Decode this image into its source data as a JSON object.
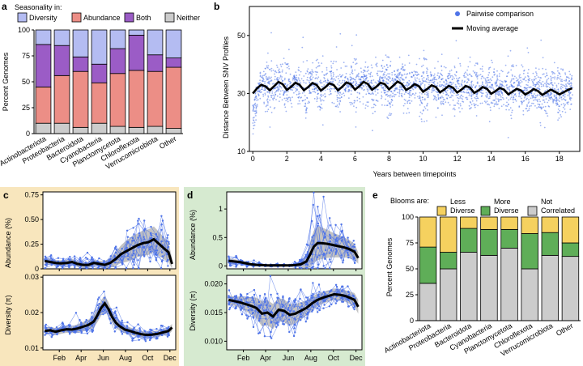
{
  "colors": {
    "diversity": "#b4bcf2",
    "abundance": "#ec8e86",
    "both": "#9b5cc6",
    "neither": "#cccccc",
    "scatter": "#4f74e8",
    "line": "#000000",
    "less_diverse": "#f5d15f",
    "more_diverse": "#5fae58",
    "not_correlated": "#cccccc",
    "panel_c_bg": "#f8e6bd",
    "panel_d_bg": "#d6ead0",
    "band": "#b8b8b8"
  },
  "panels": {
    "a": "a",
    "b": "b",
    "c": "c",
    "d": "d",
    "e": "e"
  },
  "chart_data": [
    {
      "panel": "a",
      "type": "bar",
      "stacked": true,
      "legend_title": "Seasonality in:",
      "ylabel": "Percent Genomes",
      "ylim": [
        0,
        100
      ],
      "yticks": [
        0,
        25,
        50,
        75,
        100
      ],
      "categories": [
        "Actinobacteriota",
        "Proteobacteria",
        "Bacteroidota",
        "Cyanobacteria",
        "Planctomycetota",
        "Chloroflexota",
        "Verrucomicrobiota",
        "Other"
      ],
      "series": [
        {
          "name": "Neither",
          "color_key": "neither",
          "values": [
            10,
            10,
            6,
            10,
            7,
            6,
            7,
            5
          ]
        },
        {
          "name": "Abundance",
          "color_key": "abundance",
          "values": [
            35,
            46,
            54,
            39,
            51,
            55,
            53,
            59
          ]
        },
        {
          "name": "Both",
          "color_key": "both",
          "values": [
            41,
            29,
            14,
            18,
            24,
            34,
            16,
            9
          ]
        },
        {
          "name": "Diversity",
          "color_key": "diversity",
          "values": [
            14,
            15,
            26,
            33,
            18,
            5,
            24,
            27
          ]
        }
      ],
      "legend_order": [
        "Diversity",
        "Abundance",
        "Both",
        "Neither"
      ]
    },
    {
      "panel": "b",
      "type": "scatter",
      "xlabel": "Years between timepoints",
      "ylabel": "Distance Between SNV Profiles",
      "xlim": [
        -0.2,
        19.2
      ],
      "ylim": [
        10,
        60
      ],
      "xticks": [
        0,
        2,
        4,
        6,
        8,
        10,
        12,
        14,
        16,
        18
      ],
      "yticks": [
        10,
        30,
        50
      ],
      "legend": [
        "Pairwise comparison",
        "Moving average"
      ],
      "moving_average": {
        "x": [
          0,
          0.25,
          0.5,
          0.75,
          1,
          1.25,
          1.5,
          1.75,
          2,
          2.25,
          2.5,
          2.75,
          3,
          3.25,
          3.5,
          3.75,
          4,
          4.25,
          4.5,
          4.75,
          5,
          5.25,
          5.5,
          5.75,
          6,
          6.25,
          6.5,
          6.75,
          7,
          7.25,
          7.5,
          7.75,
          8,
          8.25,
          8.5,
          8.75,
          9,
          9.25,
          9.5,
          9.75,
          10,
          10.25,
          10.5,
          10.75,
          11,
          11.25,
          11.5,
          11.75,
          12,
          12.25,
          12.5,
          12.75,
          13,
          13.25,
          13.5,
          13.75,
          14,
          14.25,
          14.5,
          14.75,
          15,
          15.25,
          15.5,
          15.75,
          16,
          16.25,
          16.5,
          16.75,
          17,
          17.25,
          17.5,
          17.75,
          18,
          18.25,
          18.5,
          18.75
        ],
        "y": [
          30.0,
          31.8,
          33.0,
          32.4,
          31.1,
          32.5,
          34.0,
          33.2,
          31.2,
          32.3,
          33.7,
          33.0,
          31.1,
          32.2,
          33.6,
          32.9,
          31.0,
          32.1,
          33.5,
          32.9,
          31.1,
          32.3,
          33.8,
          33.2,
          31.3,
          32.5,
          34.0,
          33.3,
          31.3,
          32.3,
          33.7,
          33.2,
          31.4,
          32.7,
          34.1,
          33.3,
          31.2,
          32.0,
          33.2,
          32.5,
          30.6,
          31.6,
          32.8,
          32.2,
          30.4,
          31.4,
          32.6,
          32.0,
          30.3,
          31.3,
          32.6,
          32.0,
          30.2,
          31.0,
          32.2,
          31.6,
          29.9,
          30.8,
          31.9,
          31.3,
          29.7,
          30.6,
          31.6,
          31.0,
          29.6,
          30.5,
          31.5,
          30.8,
          29.5,
          30.4,
          31.3,
          30.6,
          29.7,
          30.4,
          31.2,
          31.8
        ]
      },
      "scatter_note": "dense pairwise comparisons, mean follows moving average with annual oscillation"
    },
    {
      "panel": "c",
      "type": "line",
      "months": [
        "Feb",
        "Apr",
        "Jun",
        "Aug",
        "Oct",
        "Dec"
      ],
      "subplots": [
        {
          "ylabel": "Abundance (%)",
          "ylim": [
            0,
            0.78
          ],
          "yticks": [
            0,
            0.25,
            0.5,
            0.75
          ],
          "ytick_labels": [
            "0",
            "0.25",
            "0.50",
            "0.75"
          ],
          "x_day": [
            5,
            20,
            35,
            50,
            65,
            80,
            95,
            110,
            125,
            140,
            155,
            170,
            185,
            200,
            215,
            230,
            245,
            260,
            275,
            290,
            305,
            320,
            335,
            345,
            355
          ],
          "mean": [
            0.08,
            0.07,
            0.06,
            0.055,
            0.06,
            0.07,
            0.05,
            0.04,
            0.04,
            0.06,
            0.05,
            0.04,
            0.06,
            0.1,
            0.15,
            0.18,
            0.21,
            0.24,
            0.26,
            0.27,
            0.3,
            0.25,
            0.2,
            0.17,
            0.05
          ],
          "band": [
            0.03,
            0.03,
            0.03,
            0.03,
            0.03,
            0.03,
            0.03,
            0.03,
            0.03,
            0.03,
            0.03,
            0.04,
            0.05,
            0.07,
            0.09,
            0.11,
            0.12,
            0.12,
            0.13,
            0.13,
            0.13,
            0.12,
            0.11,
            0.1,
            0.06
          ]
        },
        {
          "ylabel": "Diversity (π)",
          "ylim": [
            0.0095,
            0.0305
          ],
          "yticks": [
            0.01,
            0.02,
            0.03
          ],
          "ytick_labels": [
            "0.01",
            "0.02",
            "0.03"
          ],
          "x_day": [
            5,
            20,
            35,
            50,
            65,
            80,
            95,
            110,
            125,
            140,
            150,
            160,
            170,
            180,
            190,
            200,
            210,
            225,
            240,
            255,
            270,
            285,
            300,
            315,
            330,
            345,
            355
          ],
          "mean": [
            0.0148,
            0.015,
            0.0146,
            0.015,
            0.0153,
            0.0152,
            0.0155,
            0.016,
            0.0165,
            0.0175,
            0.0193,
            0.0213,
            0.0226,
            0.021,
            0.0188,
            0.0172,
            0.0162,
            0.0152,
            0.0148,
            0.0143,
            0.0139,
            0.0137,
            0.0138,
            0.014,
            0.0144,
            0.0148,
            0.0158
          ],
          "band": [
            0.001,
            0.001,
            0.001,
            0.001,
            0.001,
            0.001,
            0.0012,
            0.0013,
            0.0015,
            0.0018,
            0.002,
            0.0022,
            0.0022,
            0.002,
            0.0017,
            0.0015,
            0.0013,
            0.0011,
            0.001,
            0.001,
            0.0009,
            0.0009,
            0.0009,
            0.0009,
            0.0009,
            0.001,
            0.001
          ]
        }
      ]
    },
    {
      "panel": "d",
      "type": "line",
      "months": [
        "Feb",
        "Apr",
        "Jun",
        "Aug",
        "Oct",
        "Dec"
      ],
      "subplots": [
        {
          "ylabel": "Abundance (%)",
          "ylim": [
            -0.05,
            1.3
          ],
          "yticks": [
            0,
            0.5,
            1
          ],
          "ytick_labels": [
            "0",
            "0.5",
            "1"
          ],
          "x_day": [
            5,
            20,
            35,
            50,
            65,
            80,
            95,
            110,
            125,
            140,
            155,
            170,
            185,
            200,
            215,
            225,
            235,
            245,
            255,
            270,
            285,
            300,
            315,
            330,
            345,
            355
          ],
          "mean": [
            0.09,
            0.08,
            0.07,
            0.05,
            0.03,
            0.02,
            0.015,
            0.01,
            0.01,
            0.01,
            0.01,
            0.01,
            0.015,
            0.03,
            0.08,
            0.2,
            0.34,
            0.4,
            0.4,
            0.39,
            0.37,
            0.35,
            0.33,
            0.3,
            0.25,
            0.14
          ],
          "band": [
            0.05,
            0.04,
            0.03,
            0.03,
            0.02,
            0.02,
            0.01,
            0.01,
            0.01,
            0.01,
            0.01,
            0.01,
            0.02,
            0.05,
            0.12,
            0.22,
            0.28,
            0.3,
            0.28,
            0.25,
            0.22,
            0.2,
            0.18,
            0.16,
            0.14,
            0.1
          ]
        },
        {
          "ylabel": "Diversity (π)",
          "ylim": [
            0.0085,
            0.0215
          ],
          "yticks": [
            0.01,
            0.015,
            0.02
          ],
          "ytick_labels": [
            "0.010",
            "0.015",
            "0.020"
          ],
          "x_day": [
            5,
            20,
            35,
            50,
            65,
            80,
            95,
            110,
            125,
            140,
            155,
            170,
            185,
            200,
            215,
            230,
            245,
            260,
            275,
            290,
            305,
            320,
            335,
            345,
            355
          ],
          "mean": [
            0.0172,
            0.017,
            0.0168,
            0.0165,
            0.0162,
            0.0158,
            0.0148,
            0.015,
            0.0143,
            0.0155,
            0.0153,
            0.0146,
            0.0148,
            0.0153,
            0.0158,
            0.0166,
            0.0172,
            0.0176,
            0.0179,
            0.0182,
            0.0181,
            0.0179,
            0.0175,
            0.0172,
            0.016
          ],
          "band": [
            0.0008,
            0.0008,
            0.001,
            0.0012,
            0.0015,
            0.0018,
            0.0022,
            0.0022,
            0.0022,
            0.002,
            0.002,
            0.0019,
            0.0017,
            0.0015,
            0.0013,
            0.0012,
            0.0011,
            0.001,
            0.001,
            0.001,
            0.001,
            0.001,
            0.0011,
            0.0012,
            0.0012
          ]
        }
      ]
    },
    {
      "panel": "e",
      "type": "bar",
      "stacked": true,
      "legend_title": "Blooms are:",
      "ylabel": "Percent Genomes",
      "ylim": [
        0,
        100
      ],
      "yticks": [
        0,
        25,
        50,
        75,
        100
      ],
      "categories": [
        "Actinobacteriota",
        "Proteobacteria",
        "Bacteroidota",
        "Cyanobacteria",
        "Planctomycetota",
        "Chloroflexota",
        "Verrucomicrobiota",
        "Other"
      ],
      "series": [
        {
          "name": "Not Correlated",
          "color_key": "not_correlated",
          "values": [
            36,
            50,
            66,
            63,
            70,
            50,
            63,
            62
          ]
        },
        {
          "name": "More Diverse",
          "color_key": "more_diverse",
          "values": [
            35,
            16,
            23,
            25,
            18,
            34,
            22,
            13
          ]
        },
        {
          "name": "Less Diverse",
          "color_key": "less_diverse",
          "values": [
            29,
            34,
            11,
            12,
            12,
            16,
            15,
            25
          ]
        }
      ],
      "legend_labels": [
        [
          "Less",
          "Diverse"
        ],
        [
          "More",
          "Diverse"
        ],
        [
          "Not",
          "Correlated"
        ]
      ]
    }
  ]
}
